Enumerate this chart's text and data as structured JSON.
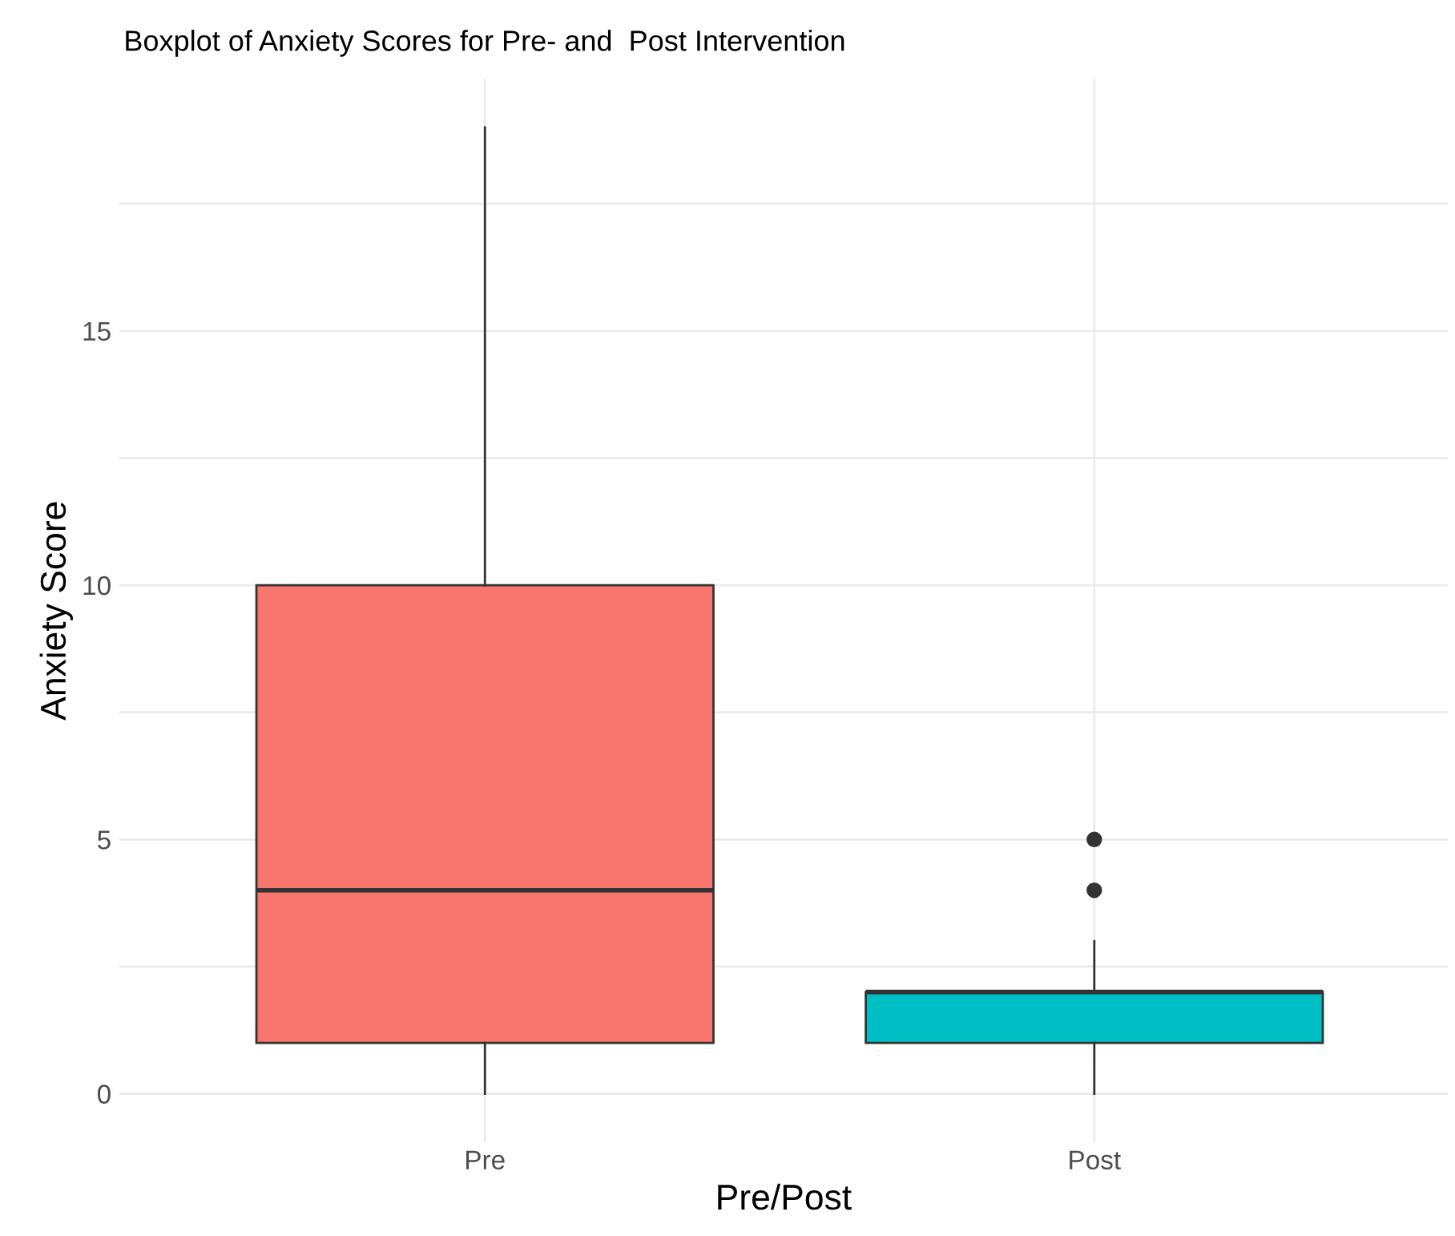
{
  "chart_data": {
    "type": "box",
    "title": "Boxplot of Anxiety Scores for Pre- and  Post Intervention",
    "xlabel": "Pre/Post",
    "ylabel": "Anxiety Score",
    "categories": [
      "Pre",
      "Post"
    ],
    "colors": [
      "#f8766d",
      "#00bfc4"
    ],
    "boxes": [
      {
        "low": 0,
        "q1": 1,
        "median": 4,
        "q3": 10,
        "high": 19
      },
      {
        "low": 0,
        "q1": 1,
        "median": 2,
        "q3": 2,
        "high": 3,
        "outliers": [
          4,
          5
        ]
      }
    ],
    "ylim": [
      -0.95,
      19.95
    ],
    "yticks": [
      0,
      {
        "value": 2.5,
        "label": null
      },
      5,
      {
        "value": 7.5,
        "label": null
      },
      10,
      {
        "value": 12.5,
        "label": null
      },
      15,
      {
        "value": 17.5,
        "label": null
      }
    ],
    "grid": true,
    "legend": false
  }
}
